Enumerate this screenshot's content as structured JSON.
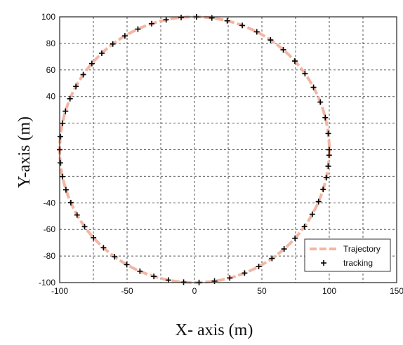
{
  "chart_data": {
    "type": "line",
    "title": "",
    "xlabel": "X- axis (m)",
    "ylabel": "Y-axis  (m)",
    "xlim": [
      -100,
      150
    ],
    "ylim": [
      -100,
      100
    ],
    "x_ticks": [
      "-100",
      "-50",
      "0",
      "50",
      "100",
      "150"
    ],
    "y_ticks": [
      "100",
      "80",
      "60",
      "40",
      "-40",
      "-60",
      "-80",
      "-100"
    ],
    "grid": true,
    "legend_position": "bottom-right",
    "series": [
      {
        "name": "Trajectory",
        "kind": "line",
        "style": "dashed",
        "color": "#f4b5a3",
        "shape": "circle",
        "center": [
          0,
          0
        ],
        "radius": 100
      },
      {
        "name": "tracking",
        "kind": "scatter",
        "marker": "+",
        "color": "#000000",
        "points": [
          [
            100,
            0
          ],
          [
            99.25,
            12.19
          ],
          [
            97.02,
            24.19
          ],
          [
            93.35,
            35.85
          ],
          [
            88.3,
            46.94
          ],
          [
            81.96,
            57.29
          ],
          [
            74.45,
            66.73
          ],
          [
            65.89,
            75.22
          ],
          [
            56.43,
            82.56
          ],
          [
            46.23,
            88.7
          ],
          [
            35.46,
            93.5
          ],
          [
            24.3,
            97.0
          ],
          [
            12.91,
            99.16
          ],
          [
            1.46,
            99.99
          ],
          [
            -9.9,
            99.51
          ],
          [
            -21.0,
            97.77
          ],
          [
            -31.73,
            94.83
          ],
          [
            -41.98,
            90.76
          ],
          [
            -51.62,
            85.65
          ],
          [
            -60.59,
            79.55
          ],
          [
            -68.78,
            72.59
          ],
          [
            -76.11,
            64.86
          ],
          [
            -82.52,
            56.48
          ],
          [
            -87.94,
            47.61
          ],
          [
            -92.35,
            38.37
          ],
          [
            -95.7,
            29.0
          ],
          [
            -98.0,
            19.9
          ],
          [
            -99.5,
            9.9
          ],
          [
            -100,
            0
          ],
          [
            -99.5,
            -9.9
          ],
          [
            -97.93,
            -20.25
          ],
          [
            -95.35,
            -30.14
          ],
          [
            -91.73,
            -39.82
          ],
          [
            -87.11,
            -49.12
          ],
          [
            -81.5,
            -57.94
          ],
          [
            -74.95,
            -66.2
          ],
          [
            -67.5,
            -73.78
          ],
          [
            -59.24,
            -80.56
          ],
          [
            -50.2,
            -86.49
          ],
          [
            -40.47,
            -91.44
          ],
          [
            -30.13,
            -95.35
          ],
          [
            -19.28,
            -98.12
          ],
          [
            -8.06,
            -99.67
          ],
          [
            3.4,
            -99.94
          ],
          [
            14.87,
            -98.89
          ],
          [
            26.19,
            -96.51
          ],
          [
            37.18,
            -92.83
          ],
          [
            47.67,
            -87.91
          ],
          [
            57.49,
            -81.82
          ],
          [
            66.5,
            -74.68
          ],
          [
            74.58,
            -66.62
          ],
          [
            81.59,
            -57.82
          ],
          [
            87.43,
            -48.54
          ],
          [
            92.04,
            -39.1
          ],
          [
            95.43,
            -29.88
          ],
          [
            97.77,
            -20.99
          ],
          [
            99.23,
            -12.42
          ],
          [
            99.89,
            -4.13
          ]
        ]
      }
    ]
  }
}
